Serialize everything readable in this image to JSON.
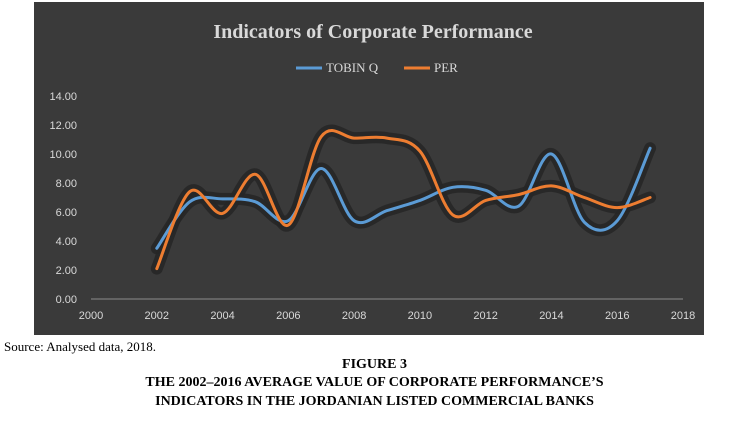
{
  "chart_data": {
    "type": "line",
    "title": "Indicators of Corporate Performance",
    "xlim": [
      2000,
      2018
    ],
    "ylim": [
      0,
      14
    ],
    "x_ticks": [
      "2000",
      "2002",
      "2004",
      "2006",
      "2008",
      "2010",
      "2012",
      "2014",
      "2016",
      "2018"
    ],
    "y_ticks": [
      "0.00",
      "2.00",
      "4.00",
      "6.00",
      "8.00",
      "10.00",
      "12.00",
      "14.00"
    ],
    "x": [
      2002,
      2003,
      2004,
      2005,
      2006,
      2007,
      2008,
      2009,
      2010,
      2011,
      2012,
      2013,
      2014,
      2015,
      2016,
      2017
    ],
    "series": [
      {
        "name": "TOBIN Q",
        "color": "#5b9bd5",
        "values": [
          3.5,
          6.7,
          6.9,
          6.7,
          5.4,
          9.0,
          5.4,
          6.1,
          6.8,
          7.7,
          7.5,
          6.4,
          10.0,
          5.3,
          5.4,
          10.4
        ]
      },
      {
        "name": "PER",
        "color": "#ed7d31",
        "values": [
          2.1,
          7.4,
          5.9,
          8.6,
          5.1,
          11.2,
          11.1,
          11.1,
          10.2,
          5.8,
          6.8,
          7.2,
          7.8,
          7.0,
          6.3,
          7.0
        ]
      }
    ],
    "grid": false,
    "legend_position": "top"
  },
  "source": "Source: Analysed data, 2018.",
  "caption": {
    "figure_number": "FIGURE 3",
    "line1": "THE 2002–2016 AVERAGE VALUE OF CORPORATE PERFORMANCE’S",
    "line2": "INDICATORS IN THE JORDANIAN LISTED COMMERCIAL BANKS"
  }
}
